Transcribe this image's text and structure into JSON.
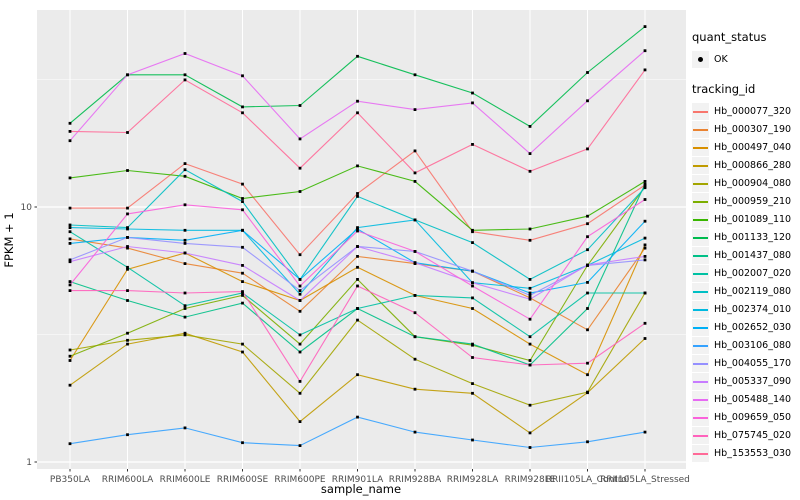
{
  "figure": {
    "background": "#FFFFFF",
    "panel_background": "#EBEBEB",
    "gridline_color": "#FFFFFF",
    "tick_label_color": "#4D4D4D",
    "axis_title_color": "#000000",
    "marker_color": "#000000",
    "legend_key_background": "#F2F2F2"
  },
  "legend": {
    "quant_status_title": "quant_status",
    "quant_status_items": [
      {
        "label": "OK",
        "marker": "black-point"
      }
    ],
    "tracking_title": "tracking_id"
  },
  "chart_data": {
    "type": "line",
    "x_label": "sample_name",
    "y_label": "FPKM + 1",
    "y_scale": "log10",
    "y_tick_values": [
      1,
      10
    ],
    "y_tick_labels": [
      "1",
      "10"
    ],
    "y_minor_gridlines": [
      3.162,
      31.62
    ],
    "ylim_log": [
      1.0,
      59.4
    ],
    "grid": true,
    "legend_position": "right",
    "marker": "black-square",
    "quant_status": "OK",
    "categories": [
      "PB350LA",
      "RRIM600LA",
      "RRIM600LE",
      "RRIM600SE",
      "RRIM600PE",
      "RRIM901LA",
      "RRIM928BA",
      "RRIM928LA",
      "RRIM928LE",
      "RRII105LA_Control",
      "RRII105LA_Stressed"
    ],
    "series": [
      {
        "name": "Hb_000077_320",
        "color": "#F8766D",
        "values": [
          9.9,
          9.9,
          14.8,
          12.3,
          6.5,
          11.3,
          16.6,
          8.0,
          7.4,
          8.6,
          12.2
        ]
      },
      {
        "name": "Hb_000307_190",
        "color": "#EA8331",
        "values": [
          7.5,
          6.9,
          6.0,
          5.5,
          3.9,
          6.4,
          6.0,
          5.6,
          4.4,
          3.3,
          6.9
        ]
      },
      {
        "name": "Hb_000497_040",
        "color": "#D89000",
        "values": [
          2.5,
          5.7,
          6.6,
          5.1,
          4.3,
          5.8,
          4.5,
          4.0,
          2.9,
          2.2,
          7.1
        ]
      },
      {
        "name": "Hb_000866_280",
        "color": "#C09B00",
        "values": [
          2.0,
          2.9,
          3.2,
          2.7,
          1.44,
          2.2,
          1.93,
          1.86,
          1.3,
          1.87,
          3.05
        ]
      },
      {
        "name": "Hb_000904_080",
        "color": "#A3A500",
        "values": [
          2.75,
          3.0,
          3.15,
          2.9,
          1.86,
          3.6,
          2.53,
          2.03,
          1.67,
          1.88,
          4.6
        ]
      },
      {
        "name": "Hb_000959_210",
        "color": "#7CAE00",
        "values": [
          2.6,
          3.2,
          4.0,
          4.5,
          2.9,
          5.2,
          3.1,
          2.87,
          2.5,
          5.9,
          12.0
        ]
      },
      {
        "name": "Hb_001089_110",
        "color": "#39B600",
        "values": [
          13.0,
          13.9,
          13.2,
          10.8,
          11.5,
          14.5,
          12.6,
          8.1,
          8.2,
          9.2,
          12.6
        ]
      },
      {
        "name": "Hb_001133_120",
        "color": "#00BB4E",
        "values": [
          21.3,
          33.0,
          33.0,
          24.7,
          25.0,
          39.0,
          33.0,
          28.0,
          20.7,
          33.7,
          51.0
        ]
      },
      {
        "name": "Hb_001437_080",
        "color": "#00C087",
        "values": [
          5.1,
          4.3,
          3.7,
          4.2,
          2.7,
          4.0,
          3.1,
          2.9,
          2.4,
          4.0,
          12.3
        ]
      },
      {
        "name": "Hb_002007_020",
        "color": "#00C1A3",
        "values": [
          8.0,
          5.8,
          4.1,
          4.6,
          3.15,
          4.0,
          4.5,
          4.4,
          3.1,
          4.6,
          4.6
        ]
      },
      {
        "name": "Hb_002119_080",
        "color": "#00BFC4",
        "values": [
          8.5,
          8.3,
          14.0,
          10.5,
          5.2,
          11.0,
          8.9,
          7.25,
          5.2,
          6.8,
          11.9
        ]
      },
      {
        "name": "Hb_002374_010",
        "color": "#00BAE0",
        "values": [
          8.3,
          8.2,
          8.1,
          8.1,
          4.55,
          8.3,
          8.9,
          5.05,
          4.8,
          5.9,
          7.55
        ]
      },
      {
        "name": "Hb_002652_030",
        "color": "#00B0F6",
        "values": [
          7.2,
          7.6,
          7.4,
          8.1,
          5.2,
          8.2,
          6.05,
          5.6,
          4.6,
          5.06,
          8.8
        ]
      },
      {
        "name": "Hb_003106_080",
        "color": "#35A2FF",
        "values": [
          1.18,
          1.28,
          1.36,
          1.19,
          1.16,
          1.5,
          1.31,
          1.22,
          1.14,
          1.2,
          1.31
        ]
      },
      {
        "name": "Hb_004055_170",
        "color": "#9590FF",
        "values": [
          6.2,
          7.6,
          7.2,
          6.95,
          4.7,
          7.0,
          6.7,
          5.6,
          4.5,
          5.9,
          6.2
        ]
      },
      {
        "name": "Hb_005337_090",
        "color": "#C77CFF",
        "values": [
          6.1,
          7.0,
          6.6,
          5.9,
          4.3,
          7.0,
          6.05,
          5.05,
          4.35,
          5.93,
          6.4
        ]
      },
      {
        "name": "Hb_005488_140",
        "color": "#E76BF3",
        "values": [
          18.2,
          33.0,
          40.0,
          32.7,
          18.5,
          26.0,
          24.1,
          25.6,
          16.2,
          26.1,
          41.0
        ]
      },
      {
        "name": "Hb_009659_050",
        "color": "#FA62DB",
        "values": [
          4.95,
          9.4,
          10.2,
          9.75,
          4.9,
          8.05,
          6.7,
          4.9,
          3.63,
          7.65,
          10.7
        ]
      },
      {
        "name": "Hb_075745_020",
        "color": "#FF62BC",
        "values": [
          4.7,
          4.7,
          4.6,
          4.66,
          2.07,
          4.9,
          3.85,
          2.57,
          2.4,
          2.44,
          3.5
        ]
      },
      {
        "name": "Hb_153553_030",
        "color": "#FF6A98",
        "values": [
          19.8,
          19.6,
          31.5,
          23.4,
          14.2,
          23.4,
          13.6,
          17.6,
          13.8,
          16.9,
          34.5
        ]
      }
    ]
  }
}
